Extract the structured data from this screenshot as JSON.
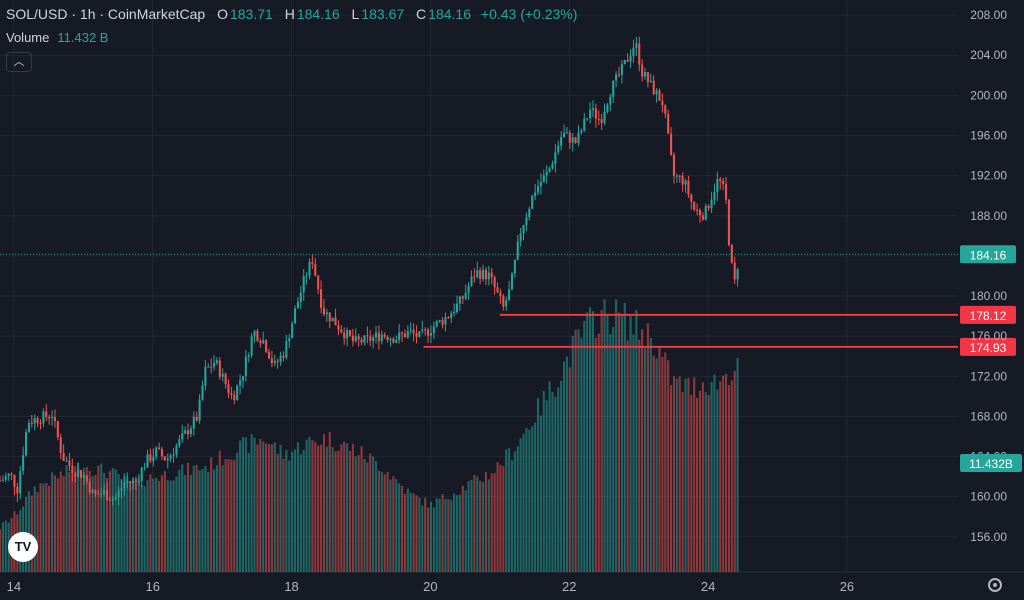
{
  "header": {
    "symbol": "SOL/USD · 1h · CoinMarketCap",
    "o_label": "O",
    "o_value": "183.71",
    "h_label": "H",
    "h_value": "184.16",
    "l_label": "L",
    "l_value": "183.67",
    "c_label": "C",
    "c_value": "184.16",
    "change": "+0.43 (+0.23%)"
  },
  "volume": {
    "label": "Volume",
    "value": "11.432 B"
  },
  "colors": {
    "background": "#161a25",
    "up": "#26a69a",
    "down": "#ef5350",
    "grid": "#232734",
    "text": "#d1d4dc",
    "level_line": "#f23645"
  },
  "chart_data": {
    "type": "candlestick",
    "title": "SOL/USD · 1h · CoinMarketCap",
    "y_ticks": [
      "156.00",
      "160.00",
      "164.00",
      "168.00",
      "172.00",
      "176.00",
      "180.00",
      "184.00",
      "188.00",
      "192.00",
      "196.00",
      "200.00",
      "204.00",
      "208.00"
    ],
    "x_ticks": [
      "14",
      "16",
      "18",
      "20",
      "22",
      "24",
      "26"
    ],
    "ylim": [
      152.5,
      209.5
    ],
    "xlim": [
      13.8,
      27.6
    ],
    "price_path": [
      [
        13.8,
        161.6
      ],
      [
        13.95,
        162.2
      ],
      [
        14.05,
        160.8
      ],
      [
        14.2,
        167.5
      ],
      [
        14.35,
        167.8
      ],
      [
        14.55,
        168.2
      ],
      [
        14.7,
        164.0
      ],
      [
        14.85,
        162.7
      ],
      [
        15.0,
        162.2
      ],
      [
        15.15,
        160.1
      ],
      [
        15.3,
        160.4
      ],
      [
        15.45,
        159.7
      ],
      [
        15.6,
        161.5
      ],
      [
        15.75,
        161.4
      ],
      [
        15.9,
        163.5
      ],
      [
        16.05,
        164.5
      ],
      [
        16.2,
        163.7
      ],
      [
        16.35,
        165.1
      ],
      [
        16.5,
        166.6
      ],
      [
        16.65,
        168.0
      ],
      [
        16.75,
        172.5
      ],
      [
        16.9,
        173.5
      ],
      [
        17.0,
        172.0
      ],
      [
        17.15,
        169.8
      ],
      [
        17.3,
        172.4
      ],
      [
        17.45,
        176.5
      ],
      [
        17.6,
        175.5
      ],
      [
        17.75,
        173.0
      ],
      [
        17.9,
        174.5
      ],
      [
        18.05,
        178.5
      ],
      [
        18.2,
        182.0
      ],
      [
        18.3,
        183.6
      ],
      [
        18.45,
        178.6
      ],
      [
        18.6,
        177.6
      ],
      [
        18.75,
        176.4
      ],
      [
        18.9,
        175.4
      ],
      [
        19.1,
        175.6
      ],
      [
        19.3,
        176.2
      ],
      [
        19.5,
        175.8
      ],
      [
        19.7,
        176.4
      ],
      [
        19.85,
        175.9
      ],
      [
        20.05,
        177.0
      ],
      [
        20.25,
        178.0
      ],
      [
        20.45,
        179.6
      ],
      [
        20.65,
        182.4
      ],
      [
        20.85,
        182.0
      ],
      [
        21.05,
        178.8
      ],
      [
        21.15,
        180.7
      ],
      [
        21.3,
        186.5
      ],
      [
        21.5,
        190.5
      ],
      [
        21.7,
        192.4
      ],
      [
        21.9,
        196.2
      ],
      [
        22.1,
        195.3
      ],
      [
        22.3,
        198.6
      ],
      [
        22.45,
        197.5
      ],
      [
        22.6,
        200.6
      ],
      [
        22.75,
        202.4
      ],
      [
        22.85,
        203.8
      ],
      [
        22.95,
        205.3
      ],
      [
        23.05,
        202.3
      ],
      [
        23.2,
        200.7
      ],
      [
        23.35,
        199.2
      ],
      [
        23.5,
        192.0
      ],
      [
        23.65,
        191.5
      ],
      [
        23.8,
        188.6
      ],
      [
        23.95,
        188.1
      ],
      [
        24.05,
        190.0
      ],
      [
        24.15,
        191.7
      ],
      [
        24.25,
        190.1
      ],
      [
        24.32,
        183.8
      ],
      [
        24.38,
        181.2
      ],
      [
        24.45,
        184.16
      ]
    ],
    "volume_path": [
      [
        13.8,
        0.08
      ],
      [
        14.0,
        0.1
      ],
      [
        14.3,
        0.15
      ],
      [
        14.6,
        0.17
      ],
      [
        15.0,
        0.19
      ],
      [
        15.35,
        0.18
      ],
      [
        15.7,
        0.16
      ],
      [
        16.0,
        0.17
      ],
      [
        16.4,
        0.18
      ],
      [
        16.8,
        0.19
      ],
      [
        17.2,
        0.22
      ],
      [
        17.6,
        0.24
      ],
      [
        17.9,
        0.21
      ],
      [
        18.2,
        0.23
      ],
      [
        18.5,
        0.24
      ],
      [
        18.9,
        0.22
      ],
      [
        19.3,
        0.19
      ],
      [
        19.7,
        0.14
      ],
      [
        20.0,
        0.12
      ],
      [
        20.3,
        0.14
      ],
      [
        20.6,
        0.16
      ],
      [
        20.9,
        0.18
      ],
      [
        21.2,
        0.22
      ],
      [
        21.5,
        0.28
      ],
      [
        21.8,
        0.34
      ],
      [
        22.05,
        0.4
      ],
      [
        22.25,
        0.44
      ],
      [
        22.45,
        0.46
      ],
      [
        22.7,
        0.46
      ],
      [
        22.95,
        0.44
      ],
      [
        23.2,
        0.42
      ],
      [
        23.5,
        0.34
      ],
      [
        23.75,
        0.33
      ],
      [
        23.95,
        0.34
      ],
      [
        24.15,
        0.34
      ],
      [
        24.3,
        0.36
      ],
      [
        24.45,
        0.36
      ]
    ],
    "last_price_label": "184.16",
    "volume_label": "11.432B",
    "levels": [
      {
        "label": "178.12",
        "price": 178.12,
        "from_x": 21.0
      },
      {
        "label": "174.93",
        "price": 174.93,
        "from_x": 19.9
      }
    ]
  },
  "logo": {
    "text": "TV"
  }
}
